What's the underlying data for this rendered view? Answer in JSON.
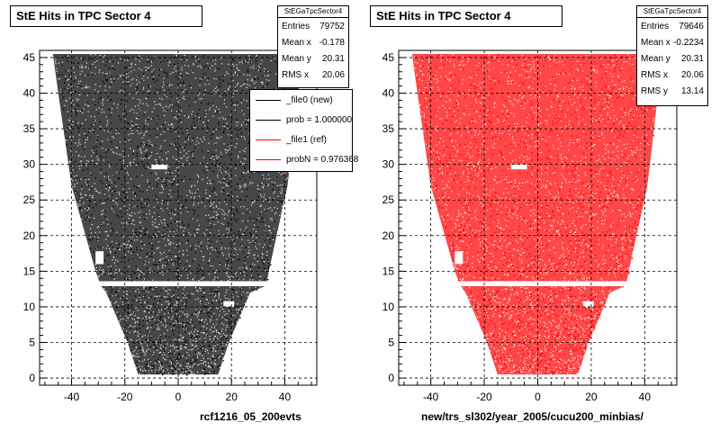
{
  "chart_data": [
    {
      "type": "scatter",
      "title": "StE Hits in TPC Sector 4",
      "xlabel": "rcf1216_05_200evts",
      "ylabel": "",
      "xlim": [
        -52,
        52
      ],
      "ylim": [
        -1,
        46
      ],
      "x_ticks": [
        -40,
        -20,
        0,
        20,
        40
      ],
      "y_ticks": [
        0,
        5,
        10,
        15,
        20,
        25,
        30,
        35,
        40,
        45
      ],
      "grid": true,
      "color": "#000000",
      "stats": {
        "name": "StEGaTpcSector4",
        "rows": [
          {
            "label": "Entries",
            "value": "79752"
          },
          {
            "label": "Mean x",
            "value": "-0.178"
          },
          {
            "label": "Mean y",
            "value": "20.31"
          },
          {
            "label": "RMS x",
            "value": "20.06"
          }
        ]
      },
      "legend": [
        {
          "label": "_file0 (new)",
          "color": "#000000"
        },
        {
          "label": "prob = 1.000000",
          "color": "#000000"
        },
        {
          "label": "_file1 (ref)",
          "color": "#ff0000"
        },
        {
          "label": "probN = 0.976368",
          "color": "#ff0000"
        }
      ],
      "footprint": [
        {
          "y": 0.5,
          "xmin": -15,
          "xmax": 15
        },
        {
          "y": 5,
          "xmin": -19,
          "xmax": 19
        },
        {
          "y": 12,
          "xmin": -27,
          "xmax": 27
        },
        {
          "y": 13,
          "xmin": -29,
          "xmax": 33
        },
        {
          "y": 15,
          "xmin": -31,
          "xmax": 34
        },
        {
          "y": 27,
          "xmin": -40,
          "xmax": 41
        },
        {
          "y": 40,
          "xmin": -45,
          "xmax": 45
        },
        {
          "y": 45.5,
          "xmin": -47,
          "xmax": 47
        }
      ]
    },
    {
      "type": "scatter",
      "title": "StE Hits in TPC Sector 4",
      "xlabel": "new/trs_sl302/year_2005/cucu200_minbias/",
      "ylabel": "",
      "xlim": [
        -52,
        52
      ],
      "ylim": [
        -1,
        46
      ],
      "x_ticks": [
        -40,
        -20,
        0,
        20,
        40
      ],
      "y_ticks": [
        0,
        5,
        10,
        15,
        20,
        25,
        30,
        35,
        40,
        45
      ],
      "grid": true,
      "color": "#ff0000",
      "stats": {
        "name": "StEGaTpcSector4",
        "rows": [
          {
            "label": "Entries",
            "value": "79646"
          },
          {
            "label": "Mean x",
            "value": "-0.2234"
          },
          {
            "label": "Mean y",
            "value": "20.31"
          },
          {
            "label": "RMS x",
            "value": "20.06"
          },
          {
            "label": "RMS y",
            "value": "13.14"
          }
        ]
      },
      "footprint": [
        {
          "y": 0.5,
          "xmin": -15,
          "xmax": 15
        },
        {
          "y": 5,
          "xmin": -19,
          "xmax": 19
        },
        {
          "y": 12,
          "xmin": -27,
          "xmax": 27
        },
        {
          "y": 13,
          "xmin": -29,
          "xmax": 33
        },
        {
          "y": 15,
          "xmin": -31,
          "xmax": 34
        },
        {
          "y": 27,
          "xmin": -40,
          "xmax": 41
        },
        {
          "y": 40,
          "xmin": -45,
          "xmax": 45
        },
        {
          "y": 45.5,
          "xmin": -47,
          "xmax": 47
        }
      ]
    }
  ]
}
